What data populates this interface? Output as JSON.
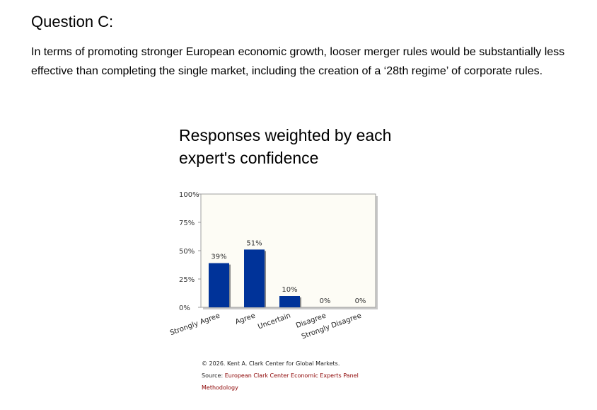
{
  "question": {
    "heading": "Question C:",
    "text": "In terms of promoting stronger European economic growth, looser merger rules would be substantially less effective than completing the single market, including the creation of a ‘28th regime’ of corporate rules."
  },
  "chart_data": {
    "type": "bar",
    "title": "Responses weighted by each expert's confidence",
    "categories": [
      "Strongly Agree",
      "Agree",
      "Uncertain",
      "Disagree",
      "Strongly Disagree"
    ],
    "values": [
      39,
      51,
      10,
      0,
      0
    ],
    "value_labels": [
      "39%",
      "51%",
      "10%",
      "0%",
      "0%"
    ],
    "y_ticks": [
      "100%",
      "75%",
      "50%",
      "25%",
      "0%"
    ],
    "ylim": [
      0,
      100
    ],
    "grid": false,
    "colors": {
      "bar": "#003399",
      "plot_background": "#fdfcf5",
      "plot_border": "#a0a0a0"
    }
  },
  "footer": {
    "copyright": "© 2026. Kent A. Clark Center for Global Markets.",
    "source_prefix": "Source: ",
    "source_link": "European Clark Center Economic Experts Panel",
    "methodology": "Methodology"
  }
}
